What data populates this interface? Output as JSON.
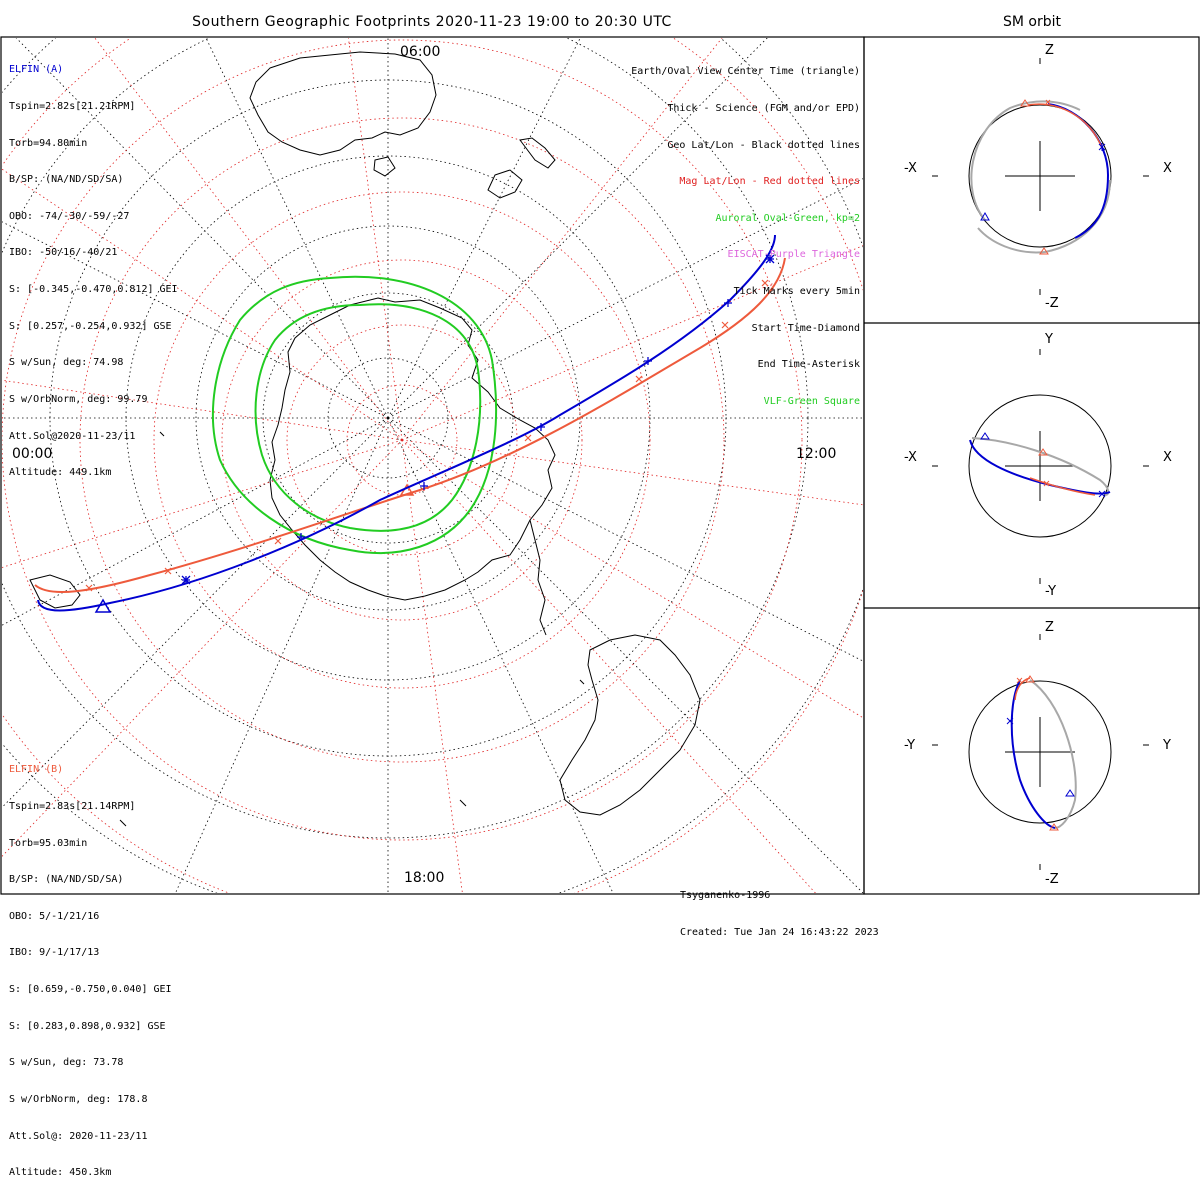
{
  "title": "Southern Geographic Footprints 2020-11-23 19:00 to 20:30 UTC",
  "sm_title": "SM orbit",
  "colors": {
    "elfin_a": "#0000d0",
    "elfin_b": "#ee5a3c",
    "geo_grid": "#000000",
    "mag_grid": "#e02020",
    "oval": "#22cc22",
    "eiscat": "#dd66dd",
    "gray_orbit": "#a8a8a8"
  },
  "elfin_a": {
    "name": "ELFIN (A)",
    "lines": [
      "Tspin=2.82s[21.21RPM]",
      "Torb=94.80min",
      "B/SP: (NA/ND/SD/SA)",
      "OBO: -74/-30/-59/-27",
      "IBO: -50/16/-40/21",
      "S: [-0.345,-0.470,0.812] GEI",
      "S: [0.257,-0.254,0.932] GSE",
      "S w/Sun, deg: 74.98",
      "S w/OrbNorm, deg: 99.79",
      "Att.Sol@2020-11-23/11",
      "Altitude: 449.1km"
    ]
  },
  "elfin_b": {
    "name": "ELFIN (B)",
    "lines": [
      "Tspin=2.83s[21.14RPM]",
      "Torb=95.03min",
      "B/SP: (NA/ND/SD/SA)",
      "OBO: 5/-1/21/16",
      "IBO: 9/-1/17/13",
      "S: [0.659,-0.750,0.040] GEI",
      "S: [0.283,0.898,0.932] GSE",
      "S w/Sun, deg: 73.78",
      "S w/OrbNorm, deg: 178.8",
      "Att.Sol@: 2020-11-23/11",
      "Altitude: 450.3km"
    ]
  },
  "legend": {
    "earth_oval": "Earth/Oval View Center Time (triangle)",
    "thick": "Thick - Science (FGM and/or EPD)",
    "geo": "Geo Lat/Lon - Black dotted lines",
    "mag": "Mag Lat/Lon - Red dotted lines",
    "oval": "Auroral Oval-Green, kp=2",
    "eiscat": "EISCAT-Purple Triangle",
    "ticks": "Tick Marks every 5min",
    "start": "Start Time-Diamond",
    "end": "End Time-Asterisk",
    "vlf": "VLF-Green Square"
  },
  "hours": {
    "top": "06:00",
    "left": "00:00",
    "right": "12:00",
    "bottom": "18:00"
  },
  "credits": {
    "model": "Tsyganenko-1996",
    "created": "Created: Tue Jan 24 16:43:22 2023"
  },
  "panels": [
    {
      "left": "-X",
      "right": "X",
      "top": "Z",
      "bottom": "-Z"
    },
    {
      "left": "-X",
      "right": "X",
      "top": "Y",
      "bottom": "-Y"
    },
    {
      "left": "-Y",
      "right": "Y",
      "top": "Z",
      "bottom": "-Z"
    }
  ]
}
